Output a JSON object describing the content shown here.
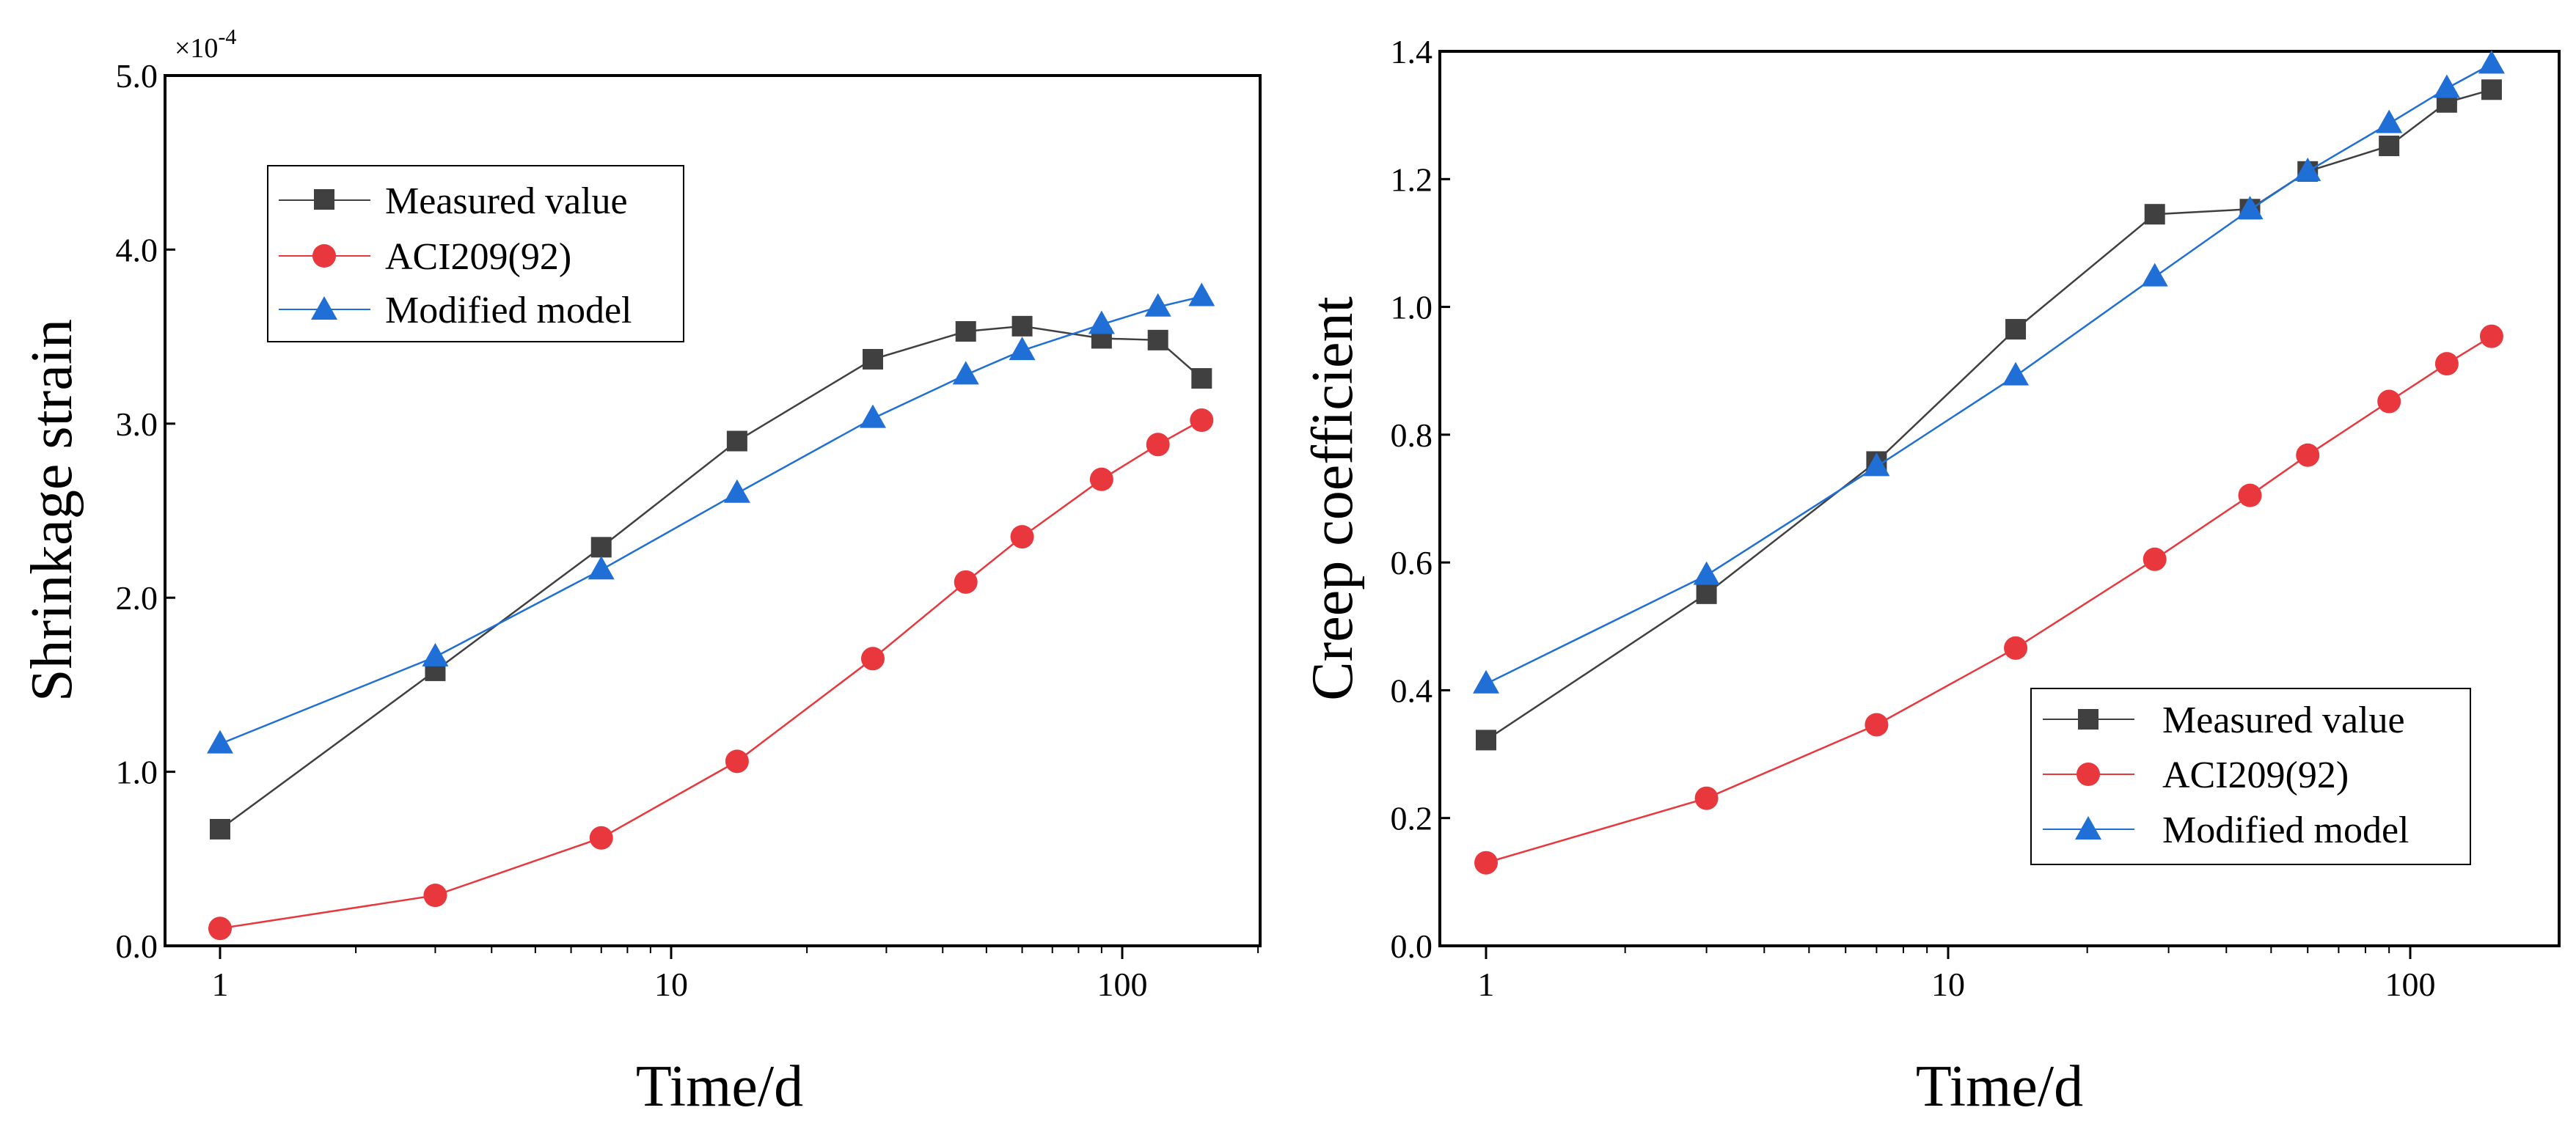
{
  "chart_data": [
    {
      "type": "line",
      "xscale": "log",
      "xlabel": "Time/d",
      "ylabel": "Shrinkage strain",
      "y_multiplier": "×10",
      "y_multiplier_exp": "-4",
      "xlim": [
        0.8,
        250
      ],
      "ylim": [
        0,
        5
      ],
      "xticks": [
        1,
        10,
        100
      ],
      "xtick_labels": [
        "1",
        "10",
        "100"
      ],
      "yticks": [
        0,
        1,
        2,
        3,
        4,
        5
      ],
      "ytick_labels": [
        "0.0",
        "1.0",
        "2.0",
        "3.0",
        "4.0",
        "5.0"
      ],
      "legend_position": "top-left",
      "x": [
        1,
        3,
        7,
        14,
        28,
        45,
        60,
        90,
        120,
        150
      ],
      "series": [
        {
          "name": "Measured value",
          "color": "#404040",
          "marker": "square",
          "values": [
            0.67,
            1.58,
            2.29,
            2.9,
            3.37,
            3.53,
            3.56,
            3.49,
            3.48,
            3.26
          ]
        },
        {
          "name": "ACI209(92)",
          "color": "#e8383d",
          "marker": "circle",
          "values": [
            0.1,
            0.29,
            0.62,
            1.06,
            1.65,
            2.09,
            2.35,
            2.68,
            2.88,
            3.02
          ]
        },
        {
          "name": "Modified model",
          "color": "#1f6fd6",
          "marker": "triangle",
          "values": [
            1.16,
            1.66,
            2.16,
            2.6,
            3.03,
            3.28,
            3.42,
            3.57,
            3.67,
            3.73
          ]
        }
      ]
    },
    {
      "type": "line",
      "xscale": "log",
      "xlabel": "Time/d",
      "ylabel": "Creep coefficient",
      "xlim": [
        0.8,
        170
      ],
      "ylim": [
        0,
        1.4
      ],
      "xticks": [
        1,
        10,
        100
      ],
      "xtick_labels": [
        "1",
        "10",
        "100"
      ],
      "yticks": [
        0,
        0.2,
        0.4,
        0.6,
        0.8,
        1.0,
        1.2,
        1.4
      ],
      "ytick_labels": [
        "0.0",
        "0.2",
        "0.4",
        "0.6",
        "0.8",
        "1.0",
        "1.2",
        "1.4"
      ],
      "legend_position": "bottom-right",
      "x": [
        1,
        3,
        7,
        14,
        28,
        45,
        60,
        90,
        120,
        150
      ],
      "series": [
        {
          "name": "Measured value",
          "color": "#404040",
          "marker": "square",
          "values": [
            0.322,
            0.551,
            0.758,
            0.965,
            1.145,
            1.153,
            1.212,
            1.252,
            1.32,
            1.34
          ]
        },
        {
          "name": "ACI209(92)",
          "color": "#e8383d",
          "marker": "circle",
          "values": [
            0.13,
            0.231,
            0.346,
            0.466,
            0.605,
            0.705,
            0.768,
            0.852,
            0.911,
            0.954
          ]
        },
        {
          "name": "Modified model",
          "color": "#1f6fd6",
          "marker": "triangle",
          "values": [
            0.41,
            0.58,
            0.75,
            0.892,
            1.047,
            1.152,
            1.212,
            1.287,
            1.342,
            1.38
          ]
        }
      ]
    }
  ]
}
